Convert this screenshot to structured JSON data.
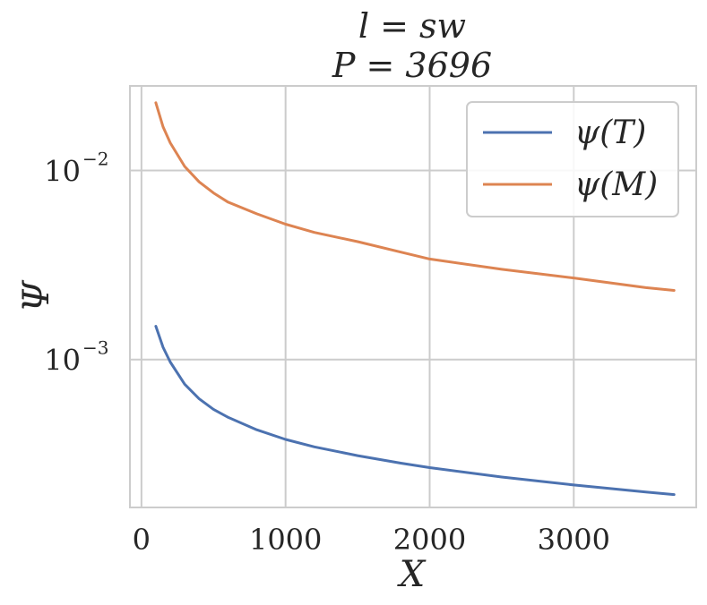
{
  "chart_data": {
    "type": "line",
    "title_line1": "l = sw",
    "title_line2": "P = 3696",
    "xlabel": "X",
    "ylabel": "Ψ",
    "xlim": [
      -80,
      3850
    ],
    "ylim": [
      0.000165,
      0.028
    ],
    "yscale": "log",
    "grid": true,
    "legend_position": "top-right",
    "x_ticks": [
      0,
      1000,
      2000,
      3000
    ],
    "x_tick_labels": [
      "0",
      "1000",
      "2000",
      "3000"
    ],
    "y_ticks": [
      0.001,
      0.01
    ],
    "y_tick_labels": [
      {
        "base": "10",
        "exp": "−3"
      },
      {
        "base": "10",
        "exp": "−2"
      }
    ],
    "x": [
      100,
      150,
      200,
      300,
      400,
      500,
      600,
      800,
      1000,
      1200,
      1500,
      1800,
      2000,
      2500,
      3000,
      3500,
      3696
    ],
    "series": [
      {
        "name": "ψ(T)",
        "color": "#4c72b0",
        "values": [
          0.0015,
          0.00116,
          0.00097,
          0.00074,
          0.00062,
          0.000545,
          0.000495,
          0.000425,
          0.000378,
          0.000345,
          0.00031,
          0.000283,
          0.000268,
          0.000239,
          0.000217,
          0.000199,
          0.000193
        ]
      },
      {
        "name": "ψ(M)",
        "color": "#dd8452",
        "values": [
          0.0228,
          0.017,
          0.014,
          0.0105,
          0.0087,
          0.0076,
          0.0068,
          0.0059,
          0.0052,
          0.0047,
          0.0042,
          0.0037,
          0.0034,
          0.003,
          0.0027,
          0.0024,
          0.00232
        ]
      }
    ]
  }
}
